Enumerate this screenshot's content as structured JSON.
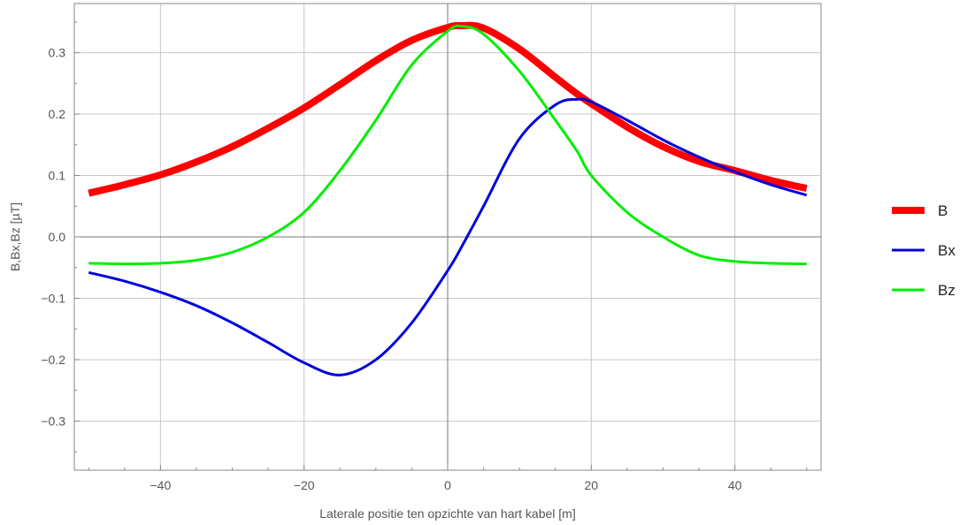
{
  "chart_data": {
    "type": "line",
    "xlabel": "Laterale positie ten opzichte van hart kabel [m]",
    "ylabel": "B,Bx,Bz [µT]",
    "xlim": [
      -52,
      52
    ],
    "ylim": [
      -0.38,
      0.38
    ],
    "x_ticks": [
      -40,
      -20,
      0,
      20,
      40
    ],
    "x_tick_labels": [
      "−40",
      "−20",
      "0",
      "20",
      "40"
    ],
    "y_ticks": [
      -0.3,
      -0.2,
      -0.1,
      0.0,
      0.1,
      0.2,
      0.3
    ],
    "y_tick_labels": [
      "−0.3",
      "−0.2",
      "−0.1",
      "0.0",
      "0.1",
      "0.2",
      "0.3"
    ],
    "grid": true,
    "legend_position": "right",
    "x": [
      -50,
      -45,
      -40,
      -35,
      -30,
      -25,
      -20,
      -15,
      -10,
      -5,
      0,
      2,
      5,
      10,
      15,
      18,
      20,
      25,
      30,
      35,
      40,
      45,
      50
    ],
    "series": [
      {
        "name": "B",
        "color": "#ff0000",
        "width": 8,
        "values": [
          0.071,
          0.085,
          0.101,
          0.122,
          0.147,
          0.177,
          0.21,
          0.248,
          0.287,
          0.32,
          0.341,
          0.344,
          0.34,
          0.306,
          0.26,
          0.233,
          0.217,
          0.179,
          0.147,
          0.123,
          0.108,
          0.092,
          0.079
        ]
      },
      {
        "name": "Bx",
        "color": "#0000dd",
        "width": 3,
        "values": [
          -0.058,
          -0.072,
          -0.09,
          -0.112,
          -0.14,
          -0.172,
          -0.205,
          -0.225,
          -0.2,
          -0.14,
          -0.055,
          -0.015,
          0.05,
          0.16,
          0.215,
          0.224,
          0.22,
          0.19,
          0.158,
          0.13,
          0.106,
          0.085,
          0.068
        ]
      },
      {
        "name": "Bz",
        "color": "#00ee00",
        "width": 3,
        "values": [
          -0.043,
          -0.044,
          -0.043,
          -0.038,
          -0.025,
          0.0,
          0.04,
          0.108,
          0.19,
          0.28,
          0.335,
          0.343,
          0.33,
          0.27,
          0.19,
          0.14,
          0.1,
          0.04,
          0.0,
          -0.03,
          -0.04,
          -0.043,
          -0.044
        ]
      }
    ]
  }
}
